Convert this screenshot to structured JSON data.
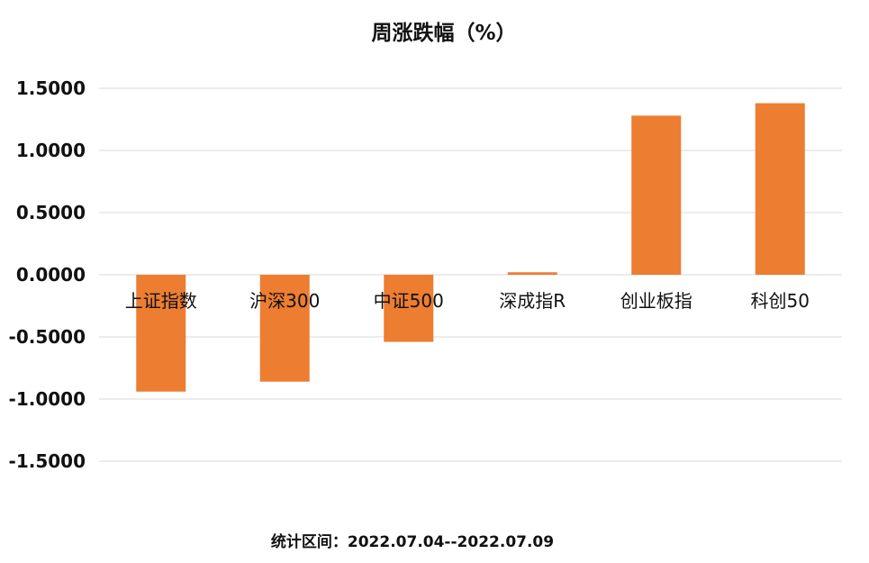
{
  "chart_data": {
    "type": "bar",
    "title": "周涨跌幅（%）",
    "categories": [
      "上证指数",
      "沪深300",
      "中证500",
      "深成指R",
      "创业板指",
      "科创50"
    ],
    "values": [
      -0.94,
      -0.86,
      -0.54,
      0.02,
      1.28,
      1.38
    ],
    "ylim": [
      -1.5,
      1.5
    ],
    "yticks": [
      "1.5000",
      "1.0000",
      "0.5000",
      "0.0000",
      "-0.5000",
      "-1.0000",
      "-1.5000"
    ],
    "ytick_values": [
      1.5,
      1.0,
      0.5,
      0.0,
      -0.5,
      -1.0,
      -1.5
    ],
    "grid": true,
    "bar_color": "#ED7D31",
    "footnote": "统计区间：2022.07.04--2022.07.09"
  }
}
